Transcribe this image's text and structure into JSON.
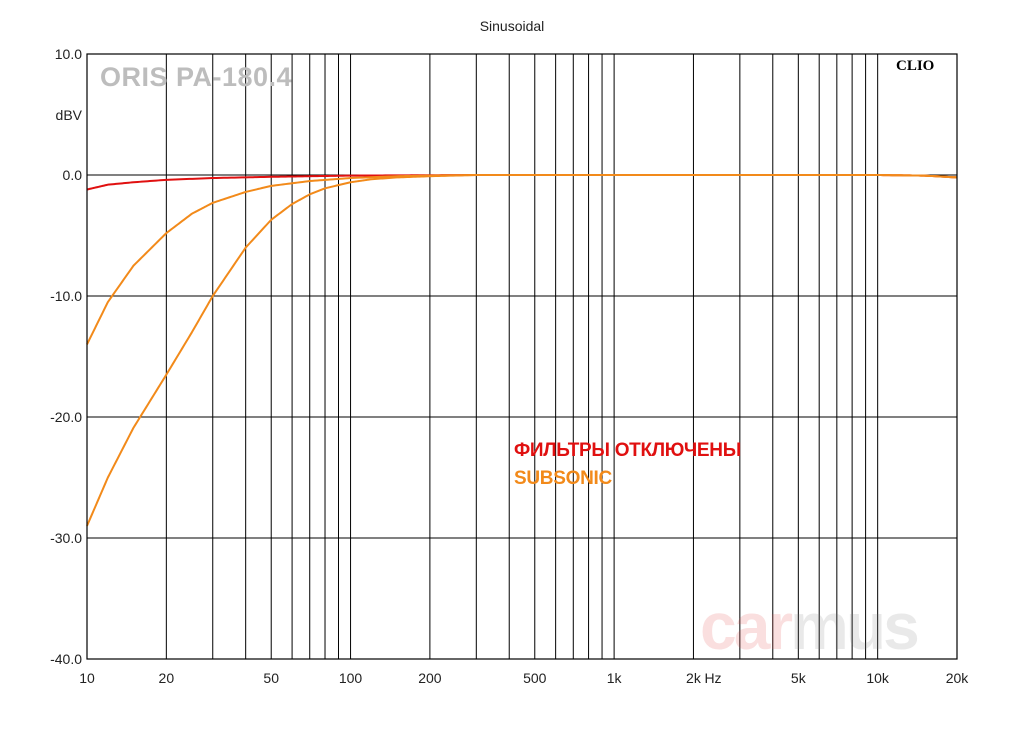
{
  "chart_data": {
    "type": "line",
    "title": "Sinusoidal",
    "ylabel": "dBV",
    "xlabel": "Hz",
    "x_scale": "log",
    "xlim": [
      10,
      20000
    ],
    "ylim": [
      -40,
      10
    ],
    "yticks": [
      10,
      0,
      -10,
      -20,
      -30,
      -40
    ],
    "ytick_labels": [
      "10.0",
      "0.0",
      "-10.0",
      "-20.0",
      "-30.0",
      "-40.0"
    ],
    "xtick_labels": [
      {
        "value": 10,
        "label": "10"
      },
      {
        "value": 20,
        "label": "20"
      },
      {
        "value": 50,
        "label": "50"
      },
      {
        "value": 100,
        "label": "100"
      },
      {
        "value": 200,
        "label": "200"
      },
      {
        "value": 500,
        "label": "500"
      },
      {
        "value": 1000,
        "label": "1k"
      },
      {
        "value": 2000,
        "label": "2k"
      },
      {
        "value": 5000,
        "label": "5k"
      },
      {
        "value": 10000,
        "label": "10k"
      },
      {
        "value": 20000,
        "label": "20k"
      }
    ],
    "grid": true,
    "series": [
      {
        "name": "ФИЛЬТРЫ ОТКЛЮЧЕНЫ",
        "color": "#e01010",
        "x": [
          10,
          12,
          15,
          20,
          30,
          50,
          70,
          100,
          150,
          200,
          300,
          1000,
          5000,
          10000,
          15000,
          20000
        ],
        "y": [
          -1.2,
          -0.8,
          -0.6,
          -0.4,
          -0.25,
          -0.15,
          -0.1,
          -0.05,
          -0.03,
          -0.02,
          0,
          0,
          0,
          0,
          -0.05,
          -0.2
        ]
      },
      {
        "name": "SUBSONIC",
        "color": "#f28a1a",
        "x": [
          10,
          12,
          15,
          20,
          25,
          30,
          40,
          50,
          70,
          100,
          150,
          200,
          300,
          1000,
          5000,
          10000,
          15000,
          20000
        ],
        "y": [
          -14,
          -10.5,
          -7.5,
          -4.8,
          -3.2,
          -2.3,
          -1.4,
          -0.9,
          -0.5,
          -0.25,
          -0.1,
          -0.05,
          0,
          0,
          0,
          0,
          -0.05,
          -0.2
        ]
      },
      {
        "name": "",
        "color": "#f28a1a",
        "x": [
          10,
          12,
          15,
          20,
          25,
          30,
          40,
          50,
          60,
          70,
          80,
          100,
          120,
          150,
          200,
          300,
          1000,
          5000,
          10000,
          15000,
          20000
        ],
        "y": [
          -29,
          -25,
          -20.9,
          -16.5,
          -13,
          -10,
          -6,
          -3.7,
          -2.4,
          -1.6,
          -1.1,
          -0.6,
          -0.35,
          -0.2,
          -0.1,
          0,
          0,
          0,
          0,
          -0.05,
          -0.2
        ]
      }
    ]
  },
  "annotations": {
    "model": "ORIS PA-180.4",
    "software": "CLIO",
    "watermark_left": "car",
    "watermark_right": "mus"
  }
}
